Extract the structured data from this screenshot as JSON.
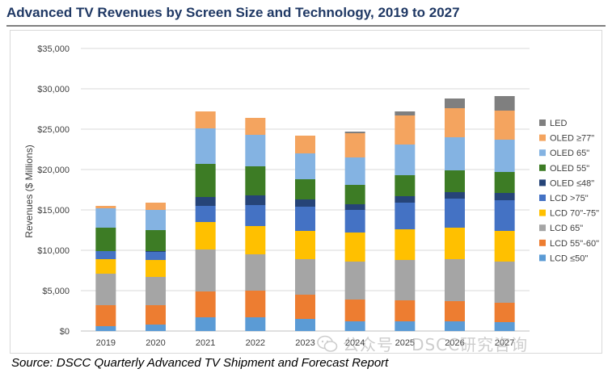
{
  "title": "Advanced TV Revenues by Screen Size and Technology, 2019 to 2027",
  "source": "Source: DSCC Quarterly Advanced TV Shipment and Forecast Report",
  "watermark": "公众号 · DSCC研究咨询",
  "chart_data": {
    "type": "bar",
    "stacked": true,
    "title": "",
    "xlabel": "",
    "ylabel": "Revenues ($ Millions)",
    "ylim": [
      0,
      35000
    ],
    "yticks": [
      "$0",
      "$5,000",
      "$10,000",
      "$15,000",
      "$20,000",
      "$25,000",
      "$30,000",
      "$35,000"
    ],
    "grid": true,
    "legend_position": "right",
    "categories": [
      "2019",
      "2020",
      "2021",
      "2022",
      "2023",
      "2024",
      "2025",
      "2026",
      "2027"
    ],
    "series": [
      {
        "name": "LCD  ≤50\"",
        "color": "#5b9bd5",
        "values": [
          600,
          800,
          1700,
          1700,
          1500,
          1200,
          1200,
          1200,
          1100
        ]
      },
      {
        "name": "LCD 55\"-60\"",
        "color": "#ed7d31",
        "values": [
          2600,
          2400,
          3200,
          3300,
          3000,
          2700,
          2600,
          2500,
          2400
        ]
      },
      {
        "name": "LCD 65\"",
        "color": "#a5a5a5",
        "values": [
          3900,
          3500,
          5200,
          4500,
          4400,
          4700,
          5000,
          5200,
          5100
        ]
      },
      {
        "name": "LCD 70\"-75\"",
        "color": "#ffc000",
        "values": [
          1800,
          2100,
          3400,
          3500,
          3500,
          3600,
          3800,
          3900,
          3800
        ]
      },
      {
        "name": "LCD >75\"",
        "color": "#4472c4",
        "values": [
          1000,
          1000,
          2000,
          2600,
          3000,
          2800,
          3300,
          3600,
          3800
        ]
      },
      {
        "name": "OLED  ≤48\"",
        "color": "#264478",
        "values": [
          0,
          100,
          1100,
          1200,
          900,
          700,
          800,
          800,
          900
        ]
      },
      {
        "name": "OLED 55\"",
        "color": "#3d7c25",
        "values": [
          2900,
          2600,
          4100,
          3600,
          2500,
          2400,
          2600,
          2700,
          2600
        ]
      },
      {
        "name": "OLED 65\"",
        "color": "#84b3e2",
        "values": [
          2400,
          2500,
          4400,
          3900,
          3200,
          3400,
          3800,
          4100,
          4000
        ]
      },
      {
        "name": "OLED ≥77\"",
        "color": "#f4a45f",
        "values": [
          300,
          900,
          2100,
          2100,
          2200,
          3000,
          3600,
          3600,
          3600
        ]
      },
      {
        "name": "LED",
        "color": "#7f7f7f",
        "values": [
          0,
          0,
          0,
          0,
          0,
          200,
          500,
          1200,
          1800
        ]
      }
    ]
  }
}
